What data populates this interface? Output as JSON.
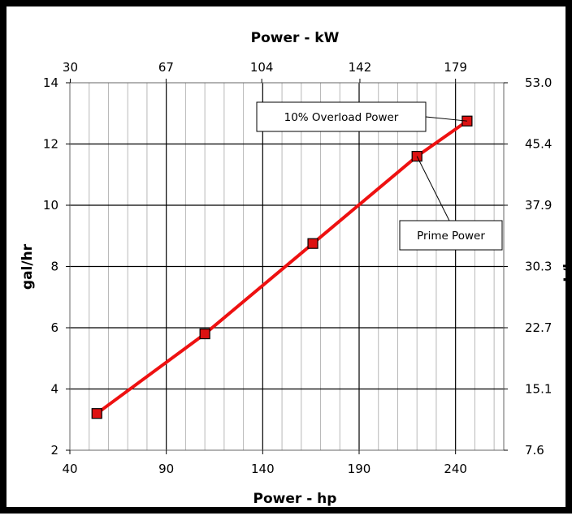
{
  "chart_data": {
    "type": "line",
    "xlabel": "Power - hp",
    "ylabel": "gal/hr",
    "top_xlabel": "Power - kW",
    "right_ylabel": "L/hr",
    "xlim": [
      40,
      265
    ],
    "ylim": [
      2,
      14
    ],
    "x_ticks": [
      40,
      90,
      140,
      190,
      240
    ],
    "x_minor_step": 10,
    "y_ticks": [
      2,
      4,
      6,
      8,
      10,
      12,
      14
    ],
    "top_ticks": [
      {
        "label": "30",
        "hp": 40.2
      },
      {
        "label": "67",
        "hp": 89.9
      },
      {
        "label": "104",
        "hp": 139.5
      },
      {
        "label": "142",
        "hp": 190.4
      },
      {
        "label": "179",
        "hp": 240.0
      }
    ],
    "right_ticks": [
      {
        "label": "7.6",
        "gal": 2
      },
      {
        "label": "15.1",
        "gal": 4
      },
      {
        "label": "22.7",
        "gal": 6
      },
      {
        "label": "30.3",
        "gal": 8
      },
      {
        "label": "37.9",
        "gal": 10
      },
      {
        "label": "45.4",
        "gal": 12
      },
      {
        "label": "53.0",
        "gal": 14
      }
    ],
    "series": [
      {
        "color": "#ee1111",
        "marker_color": "#dd1111",
        "x": [
          54,
          110,
          166,
          220,
          246
        ],
        "y": [
          3.2,
          5.8,
          8.75,
          11.6,
          12.75
        ]
      }
    ],
    "annotations": [
      {
        "text": "10% Overload Power",
        "point_index": 4
      },
      {
        "text": "Prime Power",
        "point_index": 3
      }
    ],
    "grid": true
  }
}
